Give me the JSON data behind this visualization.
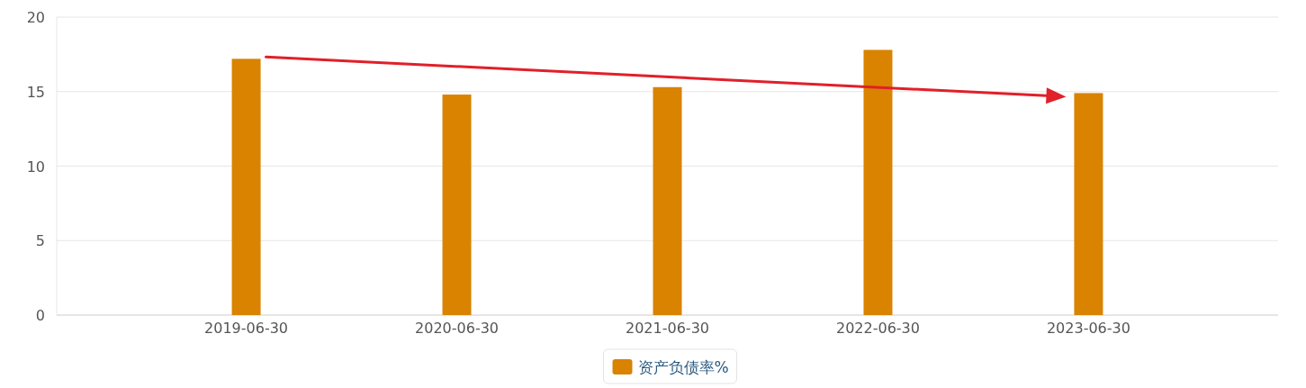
{
  "chart_data": {
    "type": "bar",
    "categories": [
      "2019-06-30",
      "2020-06-30",
      "2021-06-30",
      "2022-06-30",
      "2023-06-30"
    ],
    "series": [
      {
        "name": "资产负债率%",
        "color": "#d98300",
        "values": [
          17.2,
          14.8,
          15.3,
          17.8,
          14.9
        ]
      }
    ],
    "ylim": [
      0,
      20
    ],
    "yticks": [
      0,
      5,
      10,
      15,
      20
    ],
    "grid": "y",
    "legend": "bottom"
  }
}
